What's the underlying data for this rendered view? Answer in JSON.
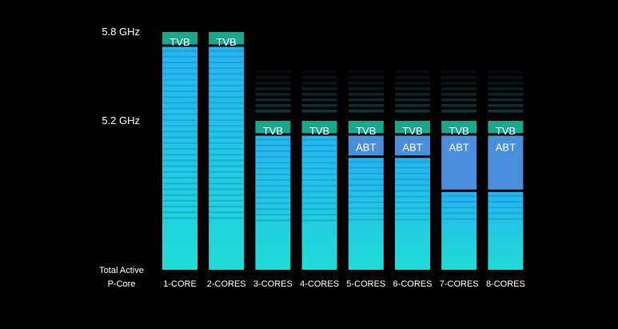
{
  "chart_data": {
    "type": "bar",
    "title": "",
    "xlabel": "Total Active P-Core",
    "xlabel_lines": [
      "Total Active",
      "P-Core"
    ],
    "ylabel": "",
    "y_tick_labels": [
      "5.8 GHz",
      "5.2 GHz"
    ],
    "categories": [
      "1-CORE",
      "2-CORES",
      "3-CORES",
      "4-CORES",
      "5-CORES",
      "6-CORES",
      "7-CORES",
      "8-CORES"
    ],
    "series": [
      {
        "name": "",
        "values": [
          5.7,
          5.7,
          5.1,
          5.1,
          4.95,
          4.95,
          4.72,
          4.72
        ]
      },
      {
        "name": "ABT",
        "values": [
          0,
          0,
          0,
          0,
          0.15,
          0.15,
          0.38,
          0.38
        ]
      },
      {
        "name": "TVB",
        "values": [
          0.1,
          0.1,
          0.1,
          0.1,
          0.1,
          0.1,
          0.1,
          0.1
        ]
      }
    ],
    "badge_labels": {
      "tvb": "TVB",
      "abt": "ABT"
    },
    "colors": {
      "base": "#1fd6e6",
      "abt": "#4a8fdc",
      "tvb": "#1aa88c",
      "background": "#000000"
    }
  }
}
